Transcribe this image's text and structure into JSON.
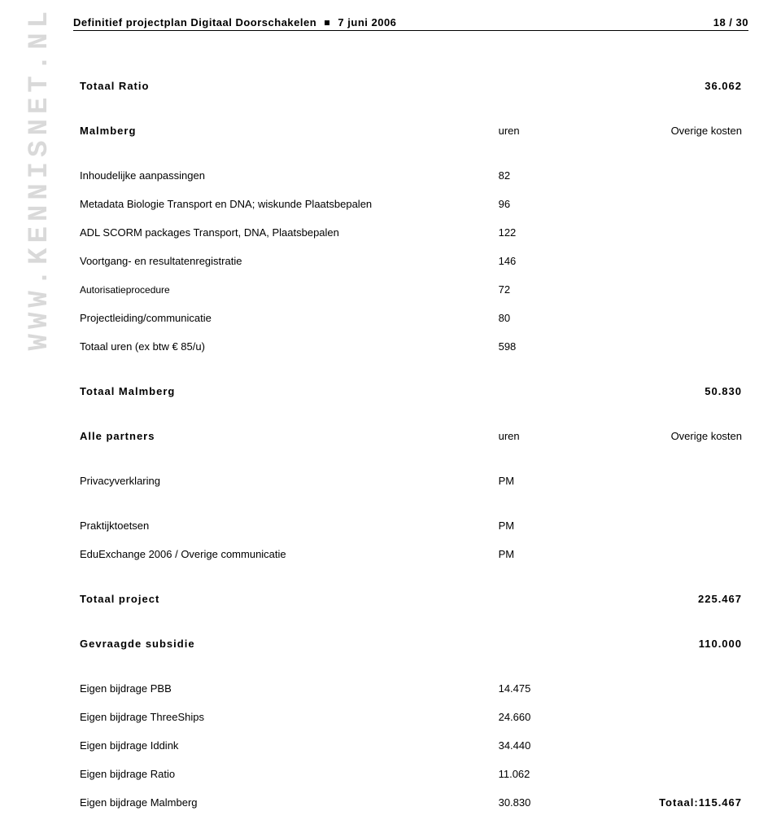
{
  "watermark": "WWW.KENNISNET.NL",
  "header": {
    "title_left": "Definitief projectplan Digitaal Doorschakelen",
    "title_date": "7 juni 2006",
    "page_indicator": "18 / 30"
  },
  "rows": {
    "totaal_ratio": {
      "label": "Totaal Ratio",
      "v2": "36.062"
    },
    "malmberg_head": {
      "label": "Malmberg",
      "v1": "uren",
      "v2": "Overige kosten"
    },
    "inhoudelijke": {
      "label": "Inhoudelijke aanpassingen",
      "v1": "82"
    },
    "metadata": {
      "label": "Metadata Biologie Transport en DNA; wiskunde Plaatsbepalen",
      "v1": "96"
    },
    "adl": {
      "label": "ADL SCORM packages Transport, DNA, Plaatsbepalen",
      "v1": "122"
    },
    "voortgang": {
      "label": "Voortgang- en resultatenregistratie",
      "v1": "146"
    },
    "autorisatie": {
      "label": "Autorisatieprocedure",
      "v1": "72"
    },
    "projectleiding": {
      "label": "Projectleiding/communicatie",
      "v1": "80"
    },
    "totaal_uren": {
      "label": "Totaal uren (ex btw € 85/u)",
      "v1": "598"
    },
    "totaal_malmberg": {
      "label": "Totaal Malmberg",
      "v2": "50.830"
    },
    "alle_partners_head": {
      "label": "Alle partners",
      "v1": "uren",
      "v2": "Overige kosten"
    },
    "privacy": {
      "label": "Privacyverklaring",
      "v1": "PM"
    },
    "praktijk": {
      "label": "Praktijktoetsen",
      "v1": "PM"
    },
    "eduexchange": {
      "label": "EduExchange 2006 / Overige communicatie",
      "v1": "PM"
    },
    "totaal_project": {
      "label": "Totaal project",
      "v2": "225.467"
    },
    "gevraagde_subsidie": {
      "label": "Gevraagde subsidie",
      "v2": "110.000"
    },
    "eb_pbb": {
      "label": "Eigen bijdrage PBB",
      "v1": "14.475"
    },
    "eb_threeships": {
      "label": "Eigen bijdrage ThreeShips",
      "v1": "24.660"
    },
    "eb_iddink": {
      "label": "Eigen bijdrage Iddink",
      "v1": "34.440"
    },
    "eb_ratio": {
      "label": "Eigen bijdrage Ratio",
      "v1": "11.062"
    },
    "eb_malmberg": {
      "label": "Eigen bijdrage Malmberg",
      "v1": "30.830",
      "v2": "Totaal:115.467"
    }
  }
}
